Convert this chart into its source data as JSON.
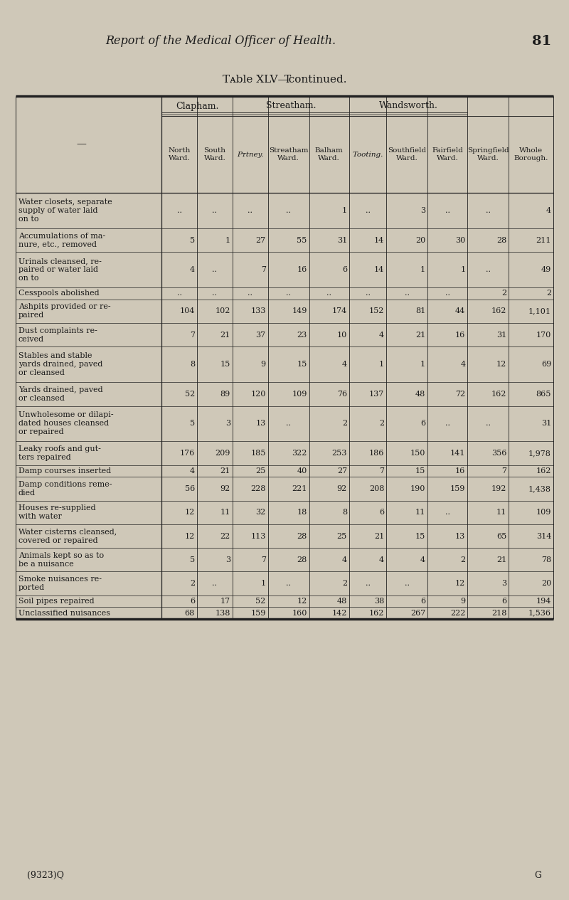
{
  "page_title": "Report of the Medical Officer of Health.",
  "page_number": "81",
  "table_title": "Tᴀble XLV—continued.",
  "footer_left": "(9323)Q",
  "footer_right": "G",
  "bg_color": "#cfc8b8",
  "col_headers": [
    "North\nWard.",
    "South\nWard.",
    "Pᴛtney.",
    "Streatham\nWard.",
    "Balham\nWard.",
    "Tᴏᴏting.",
    "Southfield\nWard.",
    "Fairfield\nWard.",
    "Springfield\nWard.",
    "Whole\nBorough."
  ],
  "col_headers_italic": [
    false,
    false,
    true,
    false,
    false,
    true,
    false,
    false,
    false,
    false
  ],
  "groups": [
    {
      "label": "Clapham.",
      "span": [
        1,
        2
      ]
    },
    {
      "label": "Streatham.",
      "span": [
        3,
        5
      ]
    },
    {
      "label": "Wandsworth.",
      "span": [
        6,
        8
      ]
    }
  ],
  "rows": [
    {
      "label": "Water closets, separate\nsupply of water laid\non to",
      "values": [
        "..",
        "..",
        "..",
        "..",
        "1",
        "..",
        "3",
        "..",
        "..",
        "4"
      ]
    },
    {
      "label": "Accumulations of ma-\nnure, etc., removed",
      "values": [
        "5",
        "1",
        "27",
        "55",
        "31",
        "14",
        "20",
        "30",
        "28",
        "211"
      ]
    },
    {
      "label": "Urinals cleansed, re-\npaired or water laid\non to",
      "values": [
        "4",
        "..",
        "7",
        "16",
        "6",
        "14",
        "1",
        "1",
        "..",
        "49"
      ]
    },
    {
      "label": "Cesspools abolished",
      "values": [
        "..",
        "..",
        "..",
        "..",
        "..",
        "..",
        "..",
        "..",
        "2",
        "2"
      ]
    },
    {
      "label": "Ashpits provided or re-\npaired",
      "values": [
        "104",
        "102",
        "133",
        "149",
        "174",
        "152",
        "81",
        "44",
        "162",
        "1,101"
      ]
    },
    {
      "label": "Dust complaints re-\nceived",
      "values": [
        "7",
        "21",
        "37",
        "23",
        "10",
        "4",
        "21",
        "16",
        "31",
        "170"
      ]
    },
    {
      "label": "Stables and stable\nyards drained, paved\nor cleansed",
      "values": [
        "8",
        "15",
        "9",
        "15",
        "4",
        "1",
        "1",
        "4",
        "12",
        "69"
      ]
    },
    {
      "label": "Yards drained, paved\nor cleansed",
      "values": [
        "52",
        "89",
        "120",
        "109",
        "76",
        "137",
        "48",
        "72",
        "162",
        "865"
      ]
    },
    {
      "label": "Unwholesome or dilapi-\ndated houses cleansed\nor repaired",
      "values": [
        "5",
        "3",
        "13",
        "..",
        "2",
        "2",
        "6",
        "..",
        "..",
        "31"
      ]
    },
    {
      "label": "Leaky roofs and gut-\nters repaired",
      "values": [
        "176",
        "209",
        "185",
        "322",
        "253",
        "186",
        "150",
        "141",
        "356",
        "1,978"
      ]
    },
    {
      "label": "Damp courses inserted",
      "values": [
        "4",
        "21",
        "25",
        "40",
        "27",
        "7",
        "15",
        "16",
        "7",
        "162"
      ]
    },
    {
      "label": "Damp conditions reme-\ndied",
      "values": [
        "56",
        "92",
        "228",
        "221",
        "92",
        "208",
        "190",
        "159",
        "192",
        "1,438"
      ]
    },
    {
      "label": "Houses re-supplied\nwith water",
      "values": [
        "12",
        "11",
        "32",
        "18",
        "8",
        "6",
        "11",
        "..",
        "11",
        "109"
      ]
    },
    {
      "label": "Water cisterns cleansed,\ncovered or repaired",
      "values": [
        "12",
        "22",
        "113",
        "28",
        "25",
        "21",
        "15",
        "13",
        "65",
        "314"
      ]
    },
    {
      "label": "Animals kept so as to\nbe a nuisance",
      "values": [
        "5",
        "3",
        "7",
        "28",
        "4",
        "4",
        "4",
        "2",
        "21",
        "78"
      ]
    },
    {
      "label": "Smoke nuisances re-\nported",
      "values": [
        "2",
        "..",
        "1",
        "..",
        "2",
        "..",
        "..",
        "12",
        "3",
        "20"
      ]
    },
    {
      "label": "Soil pipes repaired",
      "values": [
        "6",
        "17",
        "52",
        "12",
        "48",
        "38",
        "6",
        "9",
        "6",
        "194"
      ]
    },
    {
      "label": "Unclassified nuisances",
      "values": [
        "68",
        "138",
        "159",
        "160",
        "142",
        "162",
        "267",
        "222",
        "218",
        "1,536"
      ]
    }
  ]
}
